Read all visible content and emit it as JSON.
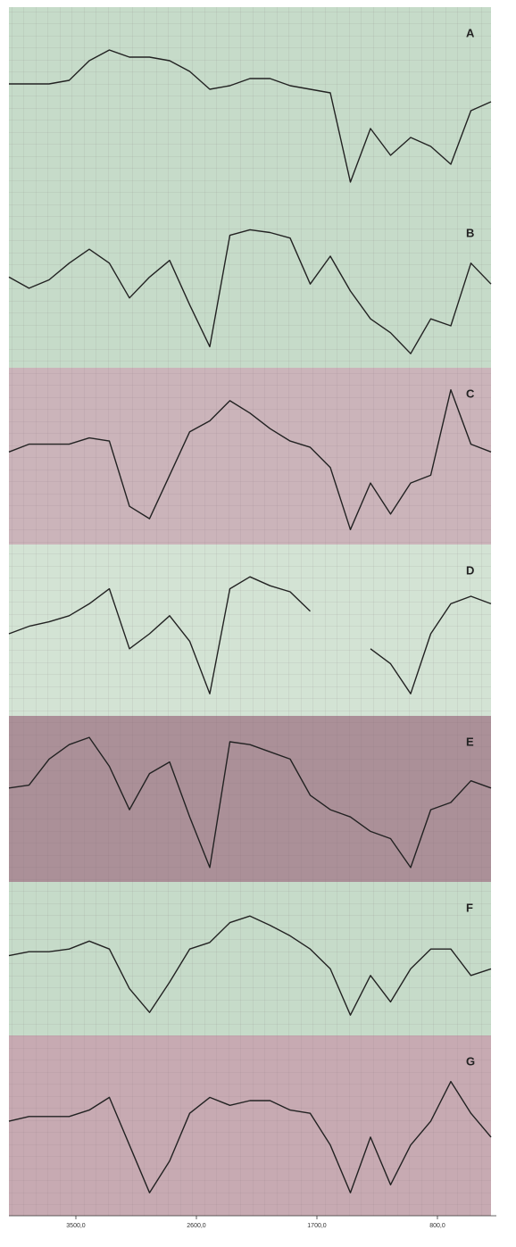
{
  "chart_data": [
    {
      "type": "line",
      "label": "A",
      "color": "#222222",
      "background": "#c6dbc9",
      "xlim": [
        4000,
        400
      ],
      "ylim": [
        0,
        100
      ],
      "x": [
        4000,
        3850,
        3700,
        3550,
        3400,
        3250,
        3100,
        2950,
        2800,
        2650,
        2500,
        2350,
        2200,
        2050,
        1900,
        1750,
        1600,
        1450,
        1300,
        1150,
        1000,
        850,
        700,
        550,
        400
      ],
      "values": [
        65,
        65,
        65,
        67,
        78,
        84,
        80,
        80,
        78,
        72,
        62,
        64,
        68,
        68,
        64,
        62,
        60,
        10,
        40,
        25,
        35,
        30,
        20,
        50,
        55
      ]
    },
    {
      "type": "line",
      "label": "B",
      "color": "#222222",
      "background": "#c6dbc9",
      "xlim": [
        4000,
        400
      ],
      "ylim": [
        0,
        100
      ],
      "x": [
        4000,
        3850,
        3700,
        3550,
        3400,
        3250,
        3100,
        2950,
        2800,
        2650,
        2500,
        2350,
        2200,
        2050,
        1900,
        1750,
        1600,
        1450,
        1300,
        1150,
        1000,
        850,
        700,
        550,
        400
      ],
      "values": [
        60,
        52,
        58,
        70,
        80,
        70,
        45,
        60,
        72,
        40,
        10,
        90,
        94,
        92,
        88,
        55,
        75,
        50,
        30,
        20,
        5,
        30,
        25,
        70,
        55
      ]
    },
    {
      "type": "line",
      "label": "C",
      "color": "#222222",
      "background": "#cbb4ba",
      "xlim": [
        4000,
        400
      ],
      "ylim": [
        0,
        100
      ],
      "x": [
        4000,
        3850,
        3700,
        3550,
        3400,
        3250,
        3100,
        2950,
        2800,
        2650,
        2500,
        2350,
        2200,
        2050,
        1900,
        1750,
        1600,
        1450,
        1300,
        1150,
        1000,
        850,
        700,
        550,
        400
      ],
      "values": [
        55,
        60,
        60,
        60,
        64,
        62,
        20,
        12,
        40,
        68,
        75,
        88,
        80,
        70,
        62,
        58,
        45,
        5,
        35,
        15,
        35,
        40,
        95,
        60,
        55
      ]
    },
    {
      "type": "line",
      "label": "D",
      "color": "#222222",
      "background": "#d3e3d4",
      "xlim": [
        4000,
        400
      ],
      "ylim": [
        0,
        100
      ],
      "x": [
        4000,
        3850,
        3700,
        3550,
        3400,
        3250,
        3100,
        2950,
        2800,
        2650,
        2500,
        2350,
        2200,
        2050,
        1900,
        1750,
        1600,
        1450,
        1300,
        1150,
        1000,
        850,
        700,
        550,
        400
      ],
      "values": [
        50,
        55,
        58,
        62,
        70,
        80,
        40,
        50,
        62,
        45,
        10,
        80,
        88,
        82,
        78,
        65,
        null,
        null,
        40,
        30,
        10,
        50,
        70,
        75,
        70
      ]
    },
    {
      "type": "line",
      "label": "E",
      "color": "#222222",
      "background": "#ab9098",
      "xlim": [
        4000,
        400
      ],
      "ylim": [
        0,
        100
      ],
      "x": [
        4000,
        3850,
        3700,
        3550,
        3400,
        3250,
        3100,
        2950,
        2800,
        2650,
        2500,
        2350,
        2200,
        2050,
        1900,
        1750,
        1600,
        1450,
        1300,
        1150,
        1000,
        850,
        700,
        550,
        400
      ],
      "values": [
        60,
        62,
        80,
        90,
        95,
        75,
        45,
        70,
        78,
        40,
        5,
        92,
        90,
        85,
        80,
        55,
        45,
        40,
        30,
        25,
        5,
        45,
        50,
        65,
        60
      ]
    },
    {
      "type": "line",
      "label": "F",
      "color": "#222222",
      "background": "#c6dbc9",
      "xlim": [
        4000,
        400
      ],
      "ylim": [
        0,
        100
      ],
      "x": [
        4000,
        3850,
        3700,
        3550,
        3400,
        3250,
        3100,
        2950,
        2800,
        2650,
        2500,
        2350,
        2200,
        2050,
        1900,
        1750,
        1600,
        1450,
        1300,
        1150,
        1000,
        850,
        700,
        550,
        400
      ],
      "values": [
        55,
        58,
        58,
        60,
        66,
        60,
        30,
        12,
        35,
        60,
        65,
        80,
        85,
        78,
        70,
        60,
        45,
        10,
        40,
        20,
        45,
        60,
        60,
        40,
        45
      ]
    },
    {
      "type": "line",
      "label": "G",
      "color": "#222222",
      "background": "#c7aab2",
      "xlim": [
        4000,
        400
      ],
      "ylim": [
        0,
        100
      ],
      "x": [
        4000,
        3850,
        3700,
        3550,
        3400,
        3250,
        3100,
        2950,
        2800,
        2650,
        2500,
        2350,
        2200,
        2050,
        1900,
        1750,
        1600,
        1450,
        1300,
        1150,
        1000,
        850,
        700,
        550,
        400
      ],
      "values": [
        55,
        58,
        58,
        58,
        62,
        70,
        40,
        10,
        30,
        60,
        70,
        65,
        68,
        68,
        62,
        60,
        40,
        10,
        45,
        15,
        40,
        55,
        80,
        60,
        45
      ],
      "xticks": [
        {
          "value": 3500,
          "label": "3500,0"
        },
        {
          "value": 2600,
          "label": "2600,0"
        },
        {
          "value": 1700,
          "label": "1700,0"
        },
        {
          "value": 800,
          "label": "800,0"
        }
      ]
    }
  ]
}
